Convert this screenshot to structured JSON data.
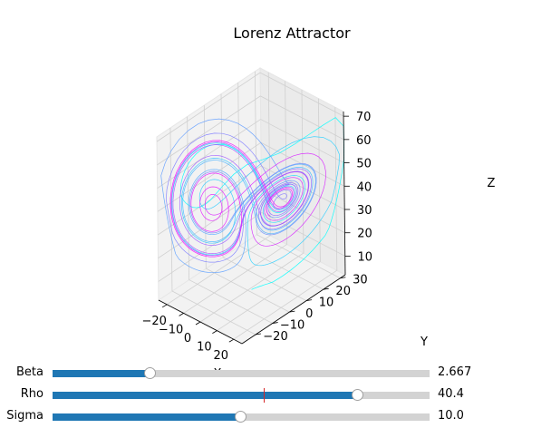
{
  "chart_data": {
    "type": "line3d",
    "title": "Lorenz Attractor",
    "xlabel": "X",
    "ylabel": "Y",
    "zlabel": "Z",
    "xticks": [
      -20,
      -10,
      0,
      10,
      20
    ],
    "yticks": [
      -20,
      -10,
      0,
      10,
      20,
      30
    ],
    "zticks": [
      10,
      20,
      30,
      40,
      50,
      60,
      70
    ],
    "xlim": [
      -25,
      25
    ],
    "ylim": [
      -28,
      33
    ],
    "zlim": [
      2,
      72
    ],
    "colormap": [
      "#00ffff",
      "#ff00ff"
    ],
    "grid": true,
    "params": {
      "beta": 2.667,
      "rho": 40.4,
      "sigma": 10.0
    }
  },
  "sliders": [
    {
      "label": "Beta",
      "value": "2.667",
      "fraction": 0.26,
      "init_fraction": null
    },
    {
      "label": "Rho",
      "value": "40.4",
      "fraction": 0.81,
      "init_fraction": 0.56
    },
    {
      "label": "Sigma",
      "value": "10.0",
      "fraction": 0.5,
      "init_fraction": null
    }
  ]
}
